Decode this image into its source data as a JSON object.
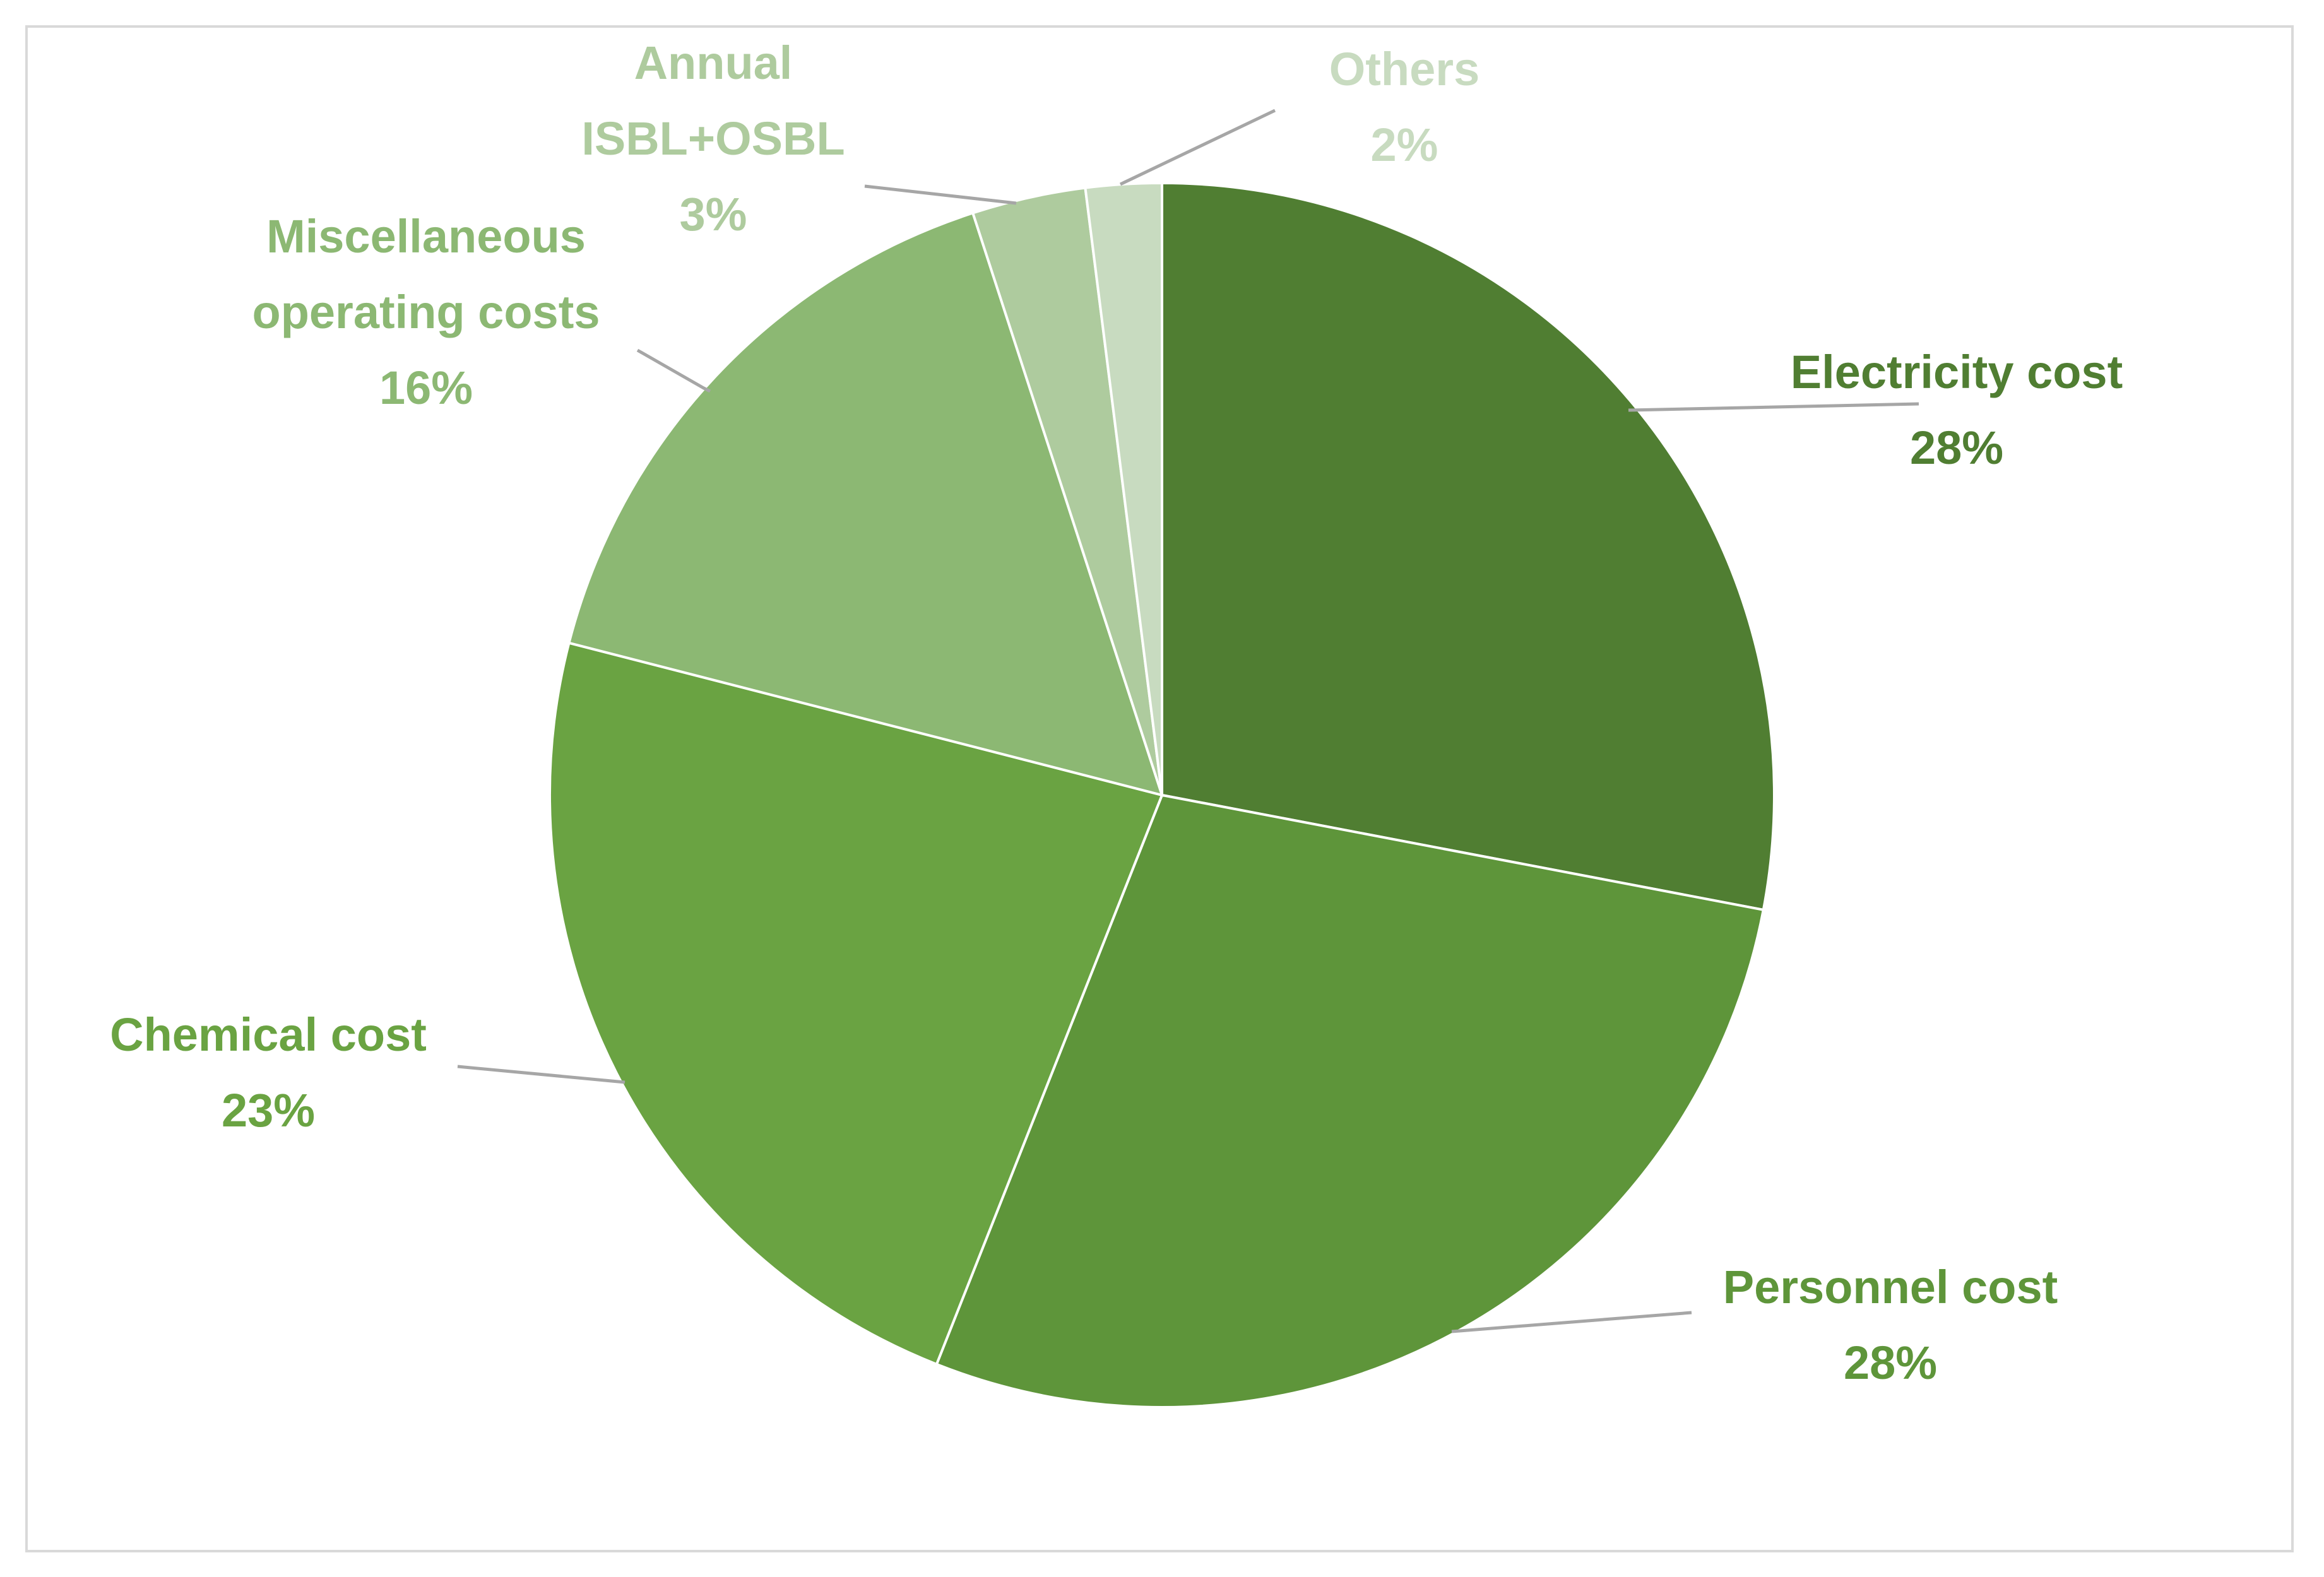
{
  "chart_data": {
    "type": "pie",
    "title": "",
    "slices": [
      {
        "label_lines": [
          "Electricity cost"
        ],
        "value": 28,
        "percent_label": "28%",
        "color": "#507e32"
      },
      {
        "label_lines": [
          "Personnel cost"
        ],
        "value": 28,
        "percent_label": "28%",
        "color": "#5e953a"
      },
      {
        "label_lines": [
          "Chemical cost"
        ],
        "value": 23,
        "percent_label": "23%",
        "color": "#6aa342"
      },
      {
        "label_lines": [
          "Miscellaneous",
          "operating costs"
        ],
        "value": 16,
        "percent_label": "16%",
        "color": "#8cb873"
      },
      {
        "label_lines": [
          "Annual",
          "ISBL+OSBL"
        ],
        "value": 3,
        "percent_label": "3%",
        "color": "#aecb9e"
      },
      {
        "label_lines": [
          "Others"
        ],
        "value": 2,
        "percent_label": "2%",
        "color": "#c8dbc0"
      }
    ],
    "start_angle": "12 o'clock",
    "direction": "clockwise",
    "leader_line_color": "#a6a6a6",
    "legend": "none"
  }
}
